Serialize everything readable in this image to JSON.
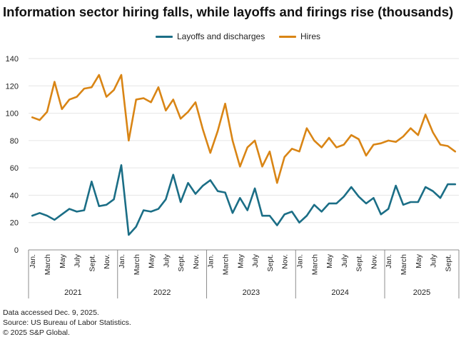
{
  "title": "Information sector hiring falls, while layoffs and firings rise (thousands)",
  "legend": {
    "layoffs_label": "Layoffs and discharges",
    "hires_label": "Hires"
  },
  "colors": {
    "layoffs": "#1b6e86",
    "hires": "#d98515",
    "grid": "#e5e5e5",
    "axis": "#8c8c8c",
    "text": "#222222"
  },
  "footnotes": {
    "line1": "Data accessed Dec. 9, 2025.",
    "line2": "Source: US Bureau of Labor Statistics.",
    "line3": "© 2025 S&P Global."
  },
  "chart_data": {
    "type": "line",
    "title": "Information sector hiring falls, while layoffs and firings rise (thousands)",
    "xlabel": "",
    "ylabel": "",
    "ylim": [
      0,
      140
    ],
    "yticks": [
      0,
      20,
      40,
      60,
      80,
      100,
      120,
      140
    ],
    "grid": true,
    "legend_position": "top-center",
    "month_tick_labels": [
      "Jan.",
      "March",
      "May",
      "July",
      "Sept.",
      "Nov."
    ],
    "years": [
      "2021",
      "2022",
      "2023",
      "2024",
      "2025"
    ],
    "months_per_year": 12,
    "series": [
      {
        "name": "Layoffs and discharges",
        "values": [
          25,
          27,
          25,
          22,
          26,
          30,
          28,
          29,
          50,
          32,
          33,
          37,
          62,
          11,
          17,
          29,
          28,
          30,
          37,
          55,
          35,
          49,
          41,
          47,
          51,
          43,
          42,
          27,
          38,
          29,
          45,
          25,
          25,
          18,
          26,
          28,
          20,
          25,
          33,
          28,
          34,
          34,
          39,
          46,
          39,
          34,
          38,
          26,
          30,
          47,
          33,
          35,
          35,
          46,
          43,
          38,
          48,
          48
        ]
      },
      {
        "name": "Hires",
        "values": [
          97,
          95,
          101,
          123,
          103,
          110,
          112,
          118,
          119,
          128,
          112,
          117,
          128,
          80,
          110,
          111,
          108,
          119,
          102,
          110,
          96,
          101,
          108,
          88,
          71,
          87,
          107,
          80,
          61,
          75,
          80,
          61,
          72,
          49,
          68,
          74,
          72,
          89,
          80,
          75,
          82,
          75,
          77,
          84,
          81,
          69,
          77,
          78,
          80,
          79,
          83,
          89,
          84,
          99,
          86,
          77,
          76,
          72
        ]
      }
    ]
  }
}
